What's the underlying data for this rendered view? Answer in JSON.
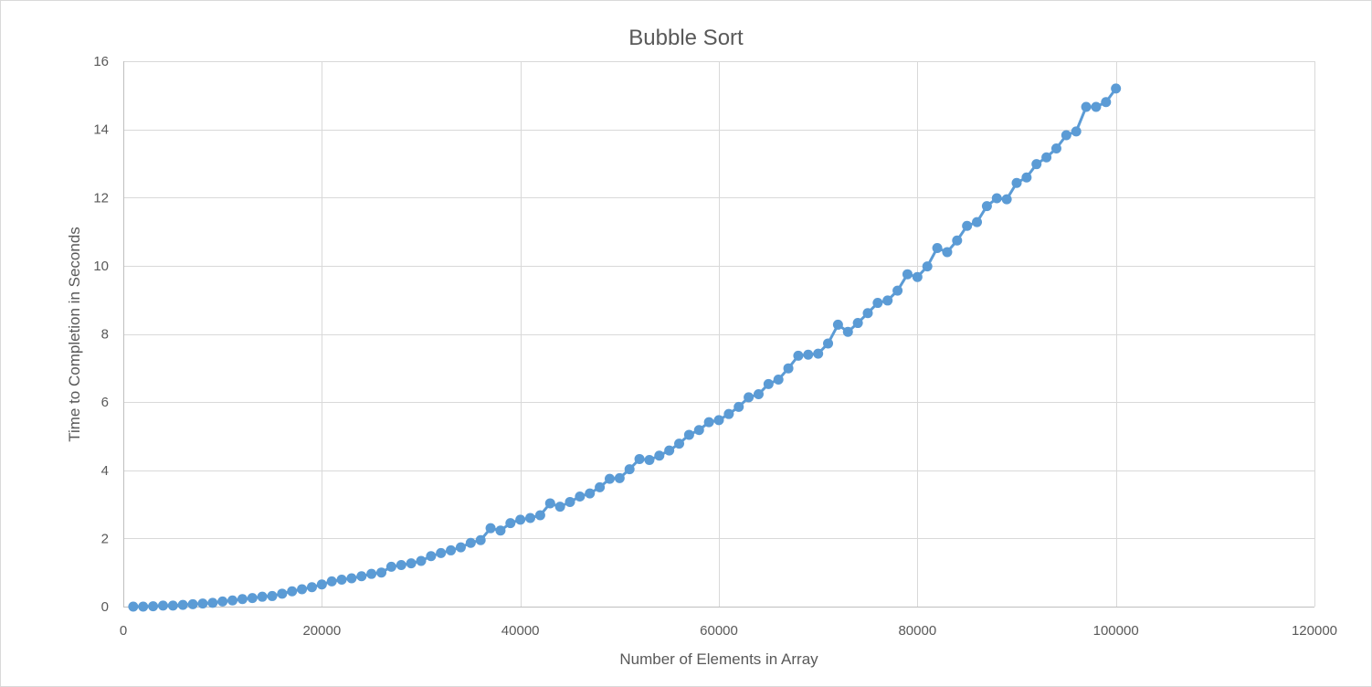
{
  "chart_data": {
    "type": "line",
    "title": "Bubble Sort",
    "xlabel": "Number of Elements in Array",
    "ylabel": "Time to Completion in Seconds",
    "xlim": [
      0,
      120000
    ],
    "ylim": [
      0,
      16
    ],
    "x_ticks": [
      "0",
      "20000",
      "40000",
      "60000",
      "80000",
      "100000",
      "120000"
    ],
    "y_ticks": [
      "0",
      "2",
      "4",
      "6",
      "8",
      "10",
      "12",
      "14",
      "16"
    ],
    "grid": true,
    "legend": "none",
    "markers": true,
    "series_color": "#5b9bd5",
    "series": [
      {
        "x": [
          1000,
          2000,
          3000,
          4000,
          5000,
          6000,
          7000,
          8000,
          9000,
          10000,
          11000,
          12000,
          13000,
          14000,
          15000,
          16000,
          17000,
          18000,
          19000,
          20000,
          21000,
          22000,
          23000,
          24000,
          25000,
          26000,
          27000,
          28000,
          29000,
          30000,
          31000,
          32000,
          33000,
          34000,
          35000,
          36000,
          37000,
          38000,
          39000,
          40000,
          41000,
          42000,
          43000,
          44000,
          45000,
          46000,
          47000,
          48000,
          49000,
          50000,
          51000,
          52000,
          53000,
          54000,
          55000,
          56000,
          57000,
          58000,
          59000,
          60000,
          61000,
          62000,
          63000,
          64000,
          65000,
          66000,
          67000,
          68000,
          69000,
          70000,
          71000,
          72000,
          73000,
          74000,
          75000,
          76000,
          77000,
          78000,
          79000,
          80000,
          81000,
          82000,
          83000,
          84000,
          85000,
          86000,
          87000,
          88000,
          89000,
          90000,
          91000,
          92000,
          93000,
          94000,
          95000,
          96000,
          97000,
          98000,
          99000,
          100000
        ],
        "values": [
          0.0,
          0.0,
          0.01,
          0.03,
          0.03,
          0.05,
          0.07,
          0.09,
          0.11,
          0.15,
          0.18,
          0.22,
          0.25,
          0.29,
          0.31,
          0.38,
          0.45,
          0.51,
          0.57,
          0.65,
          0.74,
          0.79,
          0.83,
          0.89,
          0.96,
          1.0,
          1.17,
          1.22,
          1.27,
          1.34,
          1.48,
          1.57,
          1.65,
          1.74,
          1.87,
          1.95,
          2.3,
          2.23,
          2.45,
          2.55,
          2.6,
          2.68,
          3.03,
          2.93,
          3.07,
          3.23,
          3.32,
          3.5,
          3.75,
          3.77,
          4.03,
          4.33,
          4.3,
          4.43,
          4.58,
          4.78,
          5.04,
          5.18,
          5.41,
          5.47,
          5.65,
          5.86,
          6.14,
          6.23,
          6.53,
          6.66,
          6.99,
          7.36,
          7.39,
          7.42,
          7.72,
          8.27,
          8.06,
          8.32,
          8.61,
          8.91,
          8.98,
          9.27,
          9.75,
          9.67,
          9.98,
          10.52,
          10.4,
          10.74,
          11.17,
          11.28,
          11.75,
          11.98,
          11.95,
          12.43,
          12.59,
          12.98,
          13.18,
          13.44,
          13.83,
          13.94,
          14.66,
          14.66,
          14.8,
          15.2
        ]
      }
    ]
  }
}
